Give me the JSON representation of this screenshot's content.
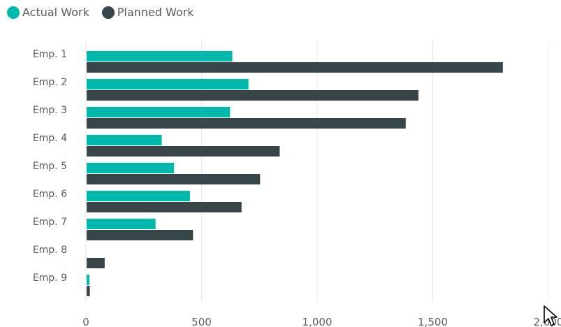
{
  "legend": {
    "items": [
      {
        "label": "Actual Work",
        "color": "#01B8AA"
      },
      {
        "label": "Planned Work",
        "color": "#374649"
      }
    ]
  },
  "colors": {
    "actual": "#01B8AA",
    "planned": "#374649",
    "gridline": "#E6E6E6",
    "tick_text": "#605E5C"
  },
  "chart_data": {
    "type": "bar",
    "orientation": "horizontal",
    "categories": [
      "Emp. 1",
      "Emp. 2",
      "Emp. 3",
      "Emp. 4",
      "Emp. 5",
      "Emp. 6",
      "Emp. 7",
      "Emp. 8",
      "Emp. 9"
    ],
    "series": [
      {
        "name": "Actual Work",
        "color": "#01B8AA",
        "values": [
          630,
          700,
          620,
          325,
          378,
          447,
          298,
          0,
          12
        ]
      },
      {
        "name": "Planned Work",
        "color": "#374649",
        "values": [
          1800,
          1435,
          1380,
          835,
          750,
          670,
          460,
          78,
          14
        ]
      }
    ],
    "xlim": [
      0,
      2000
    ],
    "x_ticks": [
      0,
      500,
      1000,
      1500,
      2000
    ],
    "x_tick_labels": [
      "0",
      "500",
      "1,000",
      "1,500",
      "2,000"
    ],
    "grid": true,
    "legend_position": "top-left",
    "xlabel": "",
    "ylabel": ""
  }
}
